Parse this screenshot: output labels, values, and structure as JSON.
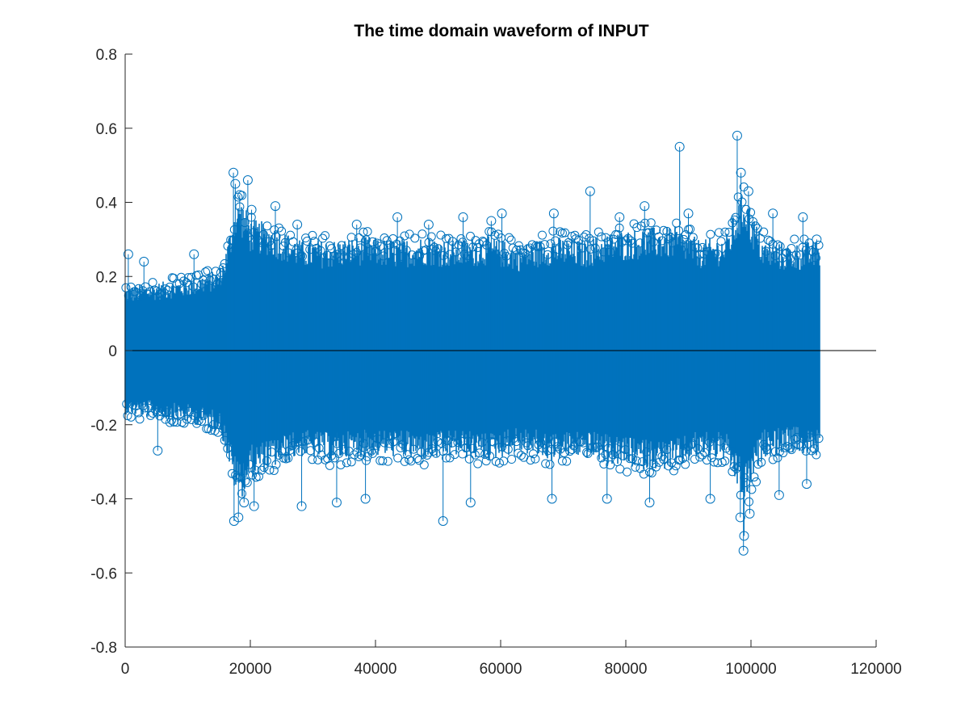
{
  "chart_data": {
    "type": "scatter",
    "style": "stem",
    "title": "The time domain waveform of INPUT",
    "xlabel": "",
    "ylabel": "",
    "xlim": [
      0,
      120000
    ],
    "ylim": [
      -0.8,
      0.8
    ],
    "x_ticks": [
      0,
      20000,
      40000,
      60000,
      80000,
      100000,
      120000
    ],
    "x_tick_labels": [
      "0",
      "20000",
      "40000",
      "60000",
      "80000",
      "100000",
      "120000"
    ],
    "y_ticks": [
      -0.8,
      -0.6,
      -0.4,
      -0.2,
      0,
      0.2,
      0.4,
      0.6,
      0.8
    ],
    "y_tick_labels": [
      "-0.8",
      "-0.6",
      "-0.4",
      "-0.2",
      "0",
      "0.2",
      "0.4",
      "0.6",
      "0.8"
    ],
    "grid": false,
    "legend": "none",
    "series_color": "#0072BD",
    "baseline_color": "#000000",
    "sample_count": 111000,
    "envelope": {
      "x": [
        0,
        5000,
        10000,
        15000,
        16000,
        17500,
        18500,
        20000,
        23000,
        28000,
        33000,
        38000,
        43000,
        48000,
        53000,
        58000,
        63000,
        68000,
        73000,
        78000,
        83000,
        88000,
        92000,
        96000,
        98000,
        99000,
        100000,
        102000,
        106000,
        111000
      ],
      "upper": [
        0.15,
        0.16,
        0.17,
        0.19,
        0.23,
        0.34,
        0.36,
        0.31,
        0.3,
        0.26,
        0.26,
        0.27,
        0.26,
        0.27,
        0.26,
        0.27,
        0.25,
        0.27,
        0.26,
        0.28,
        0.29,
        0.29,
        0.26,
        0.27,
        0.35,
        0.38,
        0.33,
        0.26,
        0.25,
        0.26
      ],
      "lower": [
        -0.15,
        -0.16,
        -0.17,
        -0.19,
        -0.23,
        -0.33,
        -0.35,
        -0.3,
        -0.28,
        -0.25,
        -0.26,
        -0.25,
        -0.25,
        -0.26,
        -0.25,
        -0.26,
        -0.24,
        -0.26,
        -0.25,
        -0.27,
        -0.28,
        -0.28,
        -0.25,
        -0.26,
        -0.33,
        -0.36,
        -0.32,
        -0.25,
        -0.24,
        -0.25
      ]
    },
    "outliers": [
      {
        "x": 500,
        "y": 0.26
      },
      {
        "x": 3000,
        "y": 0.24
      },
      {
        "x": 5200,
        "y": -0.27
      },
      {
        "x": 11000,
        "y": 0.26
      },
      {
        "x": 17300,
        "y": 0.48
      },
      {
        "x": 17600,
        "y": 0.45
      },
      {
        "x": 18300,
        "y": 0.42
      },
      {
        "x": 19600,
        "y": 0.46
      },
      {
        "x": 20200,
        "y": 0.38
      },
      {
        "x": 17400,
        "y": -0.46
      },
      {
        "x": 18100,
        "y": -0.45
      },
      {
        "x": 19000,
        "y": -0.41
      },
      {
        "x": 20600,
        "y": -0.42
      },
      {
        "x": 24000,
        "y": 0.39
      },
      {
        "x": 27500,
        "y": 0.34
      },
      {
        "x": 28200,
        "y": -0.42
      },
      {
        "x": 33800,
        "y": -0.41
      },
      {
        "x": 37000,
        "y": 0.34
      },
      {
        "x": 38400,
        "y": -0.4
      },
      {
        "x": 43500,
        "y": 0.36
      },
      {
        "x": 48500,
        "y": 0.34
      },
      {
        "x": 50800,
        "y": -0.46
      },
      {
        "x": 54000,
        "y": 0.36
      },
      {
        "x": 55200,
        "y": -0.41
      },
      {
        "x": 58500,
        "y": 0.35
      },
      {
        "x": 60200,
        "y": 0.37
      },
      {
        "x": 68500,
        "y": 0.37
      },
      {
        "x": 68200,
        "y": -0.4
      },
      {
        "x": 74300,
        "y": 0.43
      },
      {
        "x": 77000,
        "y": -0.4
      },
      {
        "x": 79000,
        "y": 0.36
      },
      {
        "x": 83000,
        "y": 0.39
      },
      {
        "x": 83800,
        "y": -0.41
      },
      {
        "x": 88600,
        "y": 0.55
      },
      {
        "x": 90000,
        "y": 0.37
      },
      {
        "x": 93500,
        "y": -0.4
      },
      {
        "x": 97800,
        "y": 0.58
      },
      {
        "x": 98400,
        "y": 0.48
      },
      {
        "x": 98800,
        "y": -0.54
      },
      {
        "x": 98900,
        "y": -0.5
      },
      {
        "x": 98300,
        "y": -0.45
      },
      {
        "x": 99600,
        "y": 0.43
      },
      {
        "x": 99800,
        "y": -0.44
      },
      {
        "x": 103500,
        "y": 0.37
      },
      {
        "x": 104500,
        "y": -0.39
      },
      {
        "x": 108300,
        "y": 0.36
      },
      {
        "x": 108900,
        "y": -0.36
      },
      {
        "x": 110500,
        "y": 0.3
      }
    ]
  }
}
